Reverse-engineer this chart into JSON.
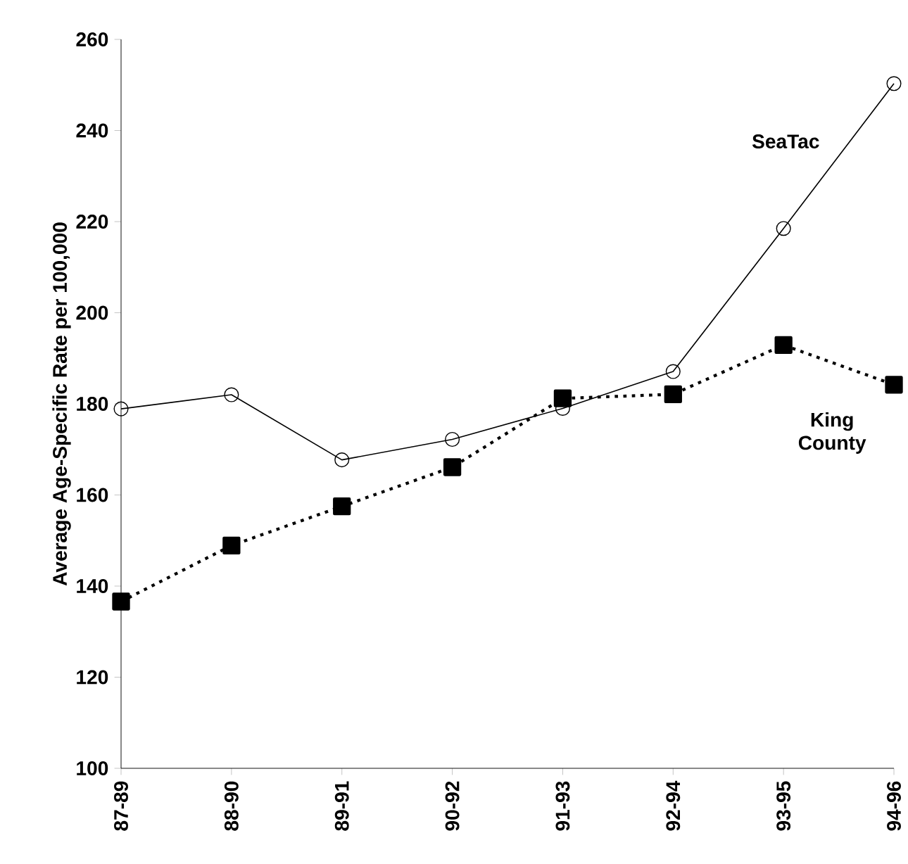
{
  "chart_data": {
    "type": "line",
    "ylabel": "Average Age-Specific Rate per 100,000",
    "categories": [
      "87-89",
      "88-90",
      "89-91",
      "90-92",
      "91-93",
      "92-94",
      "93-95",
      "94-96"
    ],
    "ylim": [
      100,
      260
    ],
    "yticks": [
      100,
      120,
      140,
      160,
      180,
      200,
      220,
      240,
      260
    ],
    "series": [
      {
        "name": "SeaTac",
        "color": "#000000",
        "marker": "circle",
        "line_style": "solid",
        "values": [
          178.9,
          182,
          167.7,
          172.2,
          179,
          187.1,
          218.5,
          250.3
        ]
      },
      {
        "name": "King County",
        "color": "#000000",
        "marker": "square",
        "line_style": "dotted",
        "values": [
          136.6,
          148.9,
          157.5,
          166.1,
          181.2,
          182.1,
          192.9,
          184.2
        ]
      }
    ]
  }
}
